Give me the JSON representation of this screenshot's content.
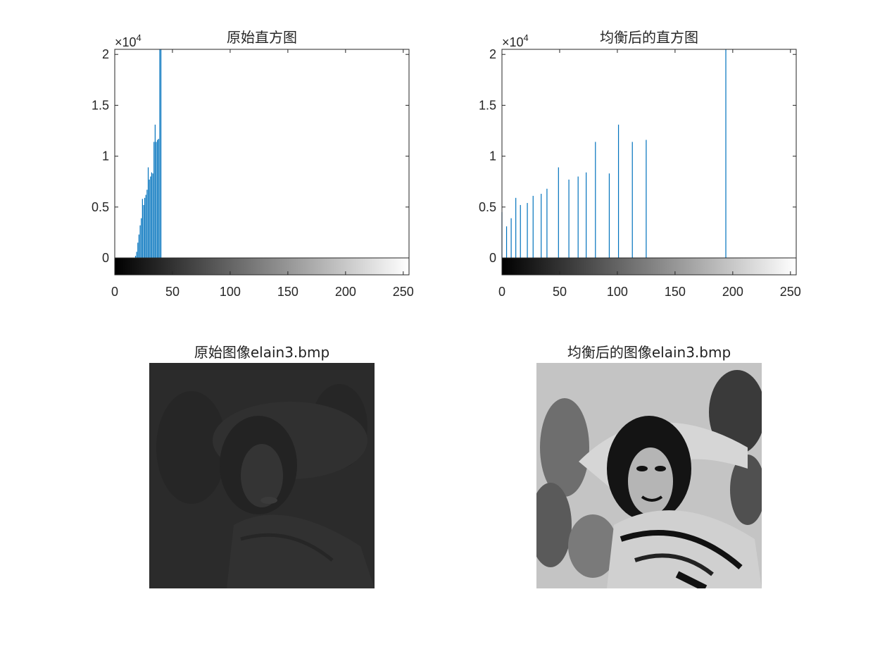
{
  "colors": {
    "bar": "#0072BD",
    "axis": "#262626",
    "background": "#ffffff",
    "original_image_tone": "#2b2b2b",
    "equalized_light": "#c4c4c4",
    "equalized_dark": "#111111"
  },
  "chart_data": [
    {
      "type": "bar",
      "title": "原始直方图",
      "exponent_label": "×10",
      "exponent_power": "4",
      "xlim": [
        0,
        255
      ],
      "ylim": [
        0,
        20500
      ],
      "xticks": [
        0,
        50,
        100,
        150,
        200,
        250
      ],
      "xtick_labels": [
        "0",
        "50",
        "100",
        "150",
        "200",
        "250"
      ],
      "yticks": [
        0,
        5000,
        10000,
        15000,
        20000
      ],
      "ytick_labels": [
        "0",
        "0.5",
        "1",
        "1.5",
        "2"
      ],
      "colorbar": "grayscale 0-255",
      "x": [
        18,
        19,
        20,
        21,
        22,
        23,
        24,
        25,
        26,
        27,
        28,
        29,
        30,
        31,
        32,
        33,
        34,
        35,
        36,
        37,
        38,
        39,
        40
      ],
      "values": [
        200,
        600,
        1500,
        2300,
        3200,
        3900,
        5800,
        5200,
        5900,
        6200,
        6700,
        8900,
        7700,
        8000,
        8400,
        8300,
        11400,
        13100,
        11400,
        11600,
        11700,
        20500,
        20500
      ]
    },
    {
      "type": "bar",
      "title": "均衡后的直方图",
      "exponent_label": "×10",
      "exponent_power": "4",
      "xlim": [
        0,
        255
      ],
      "ylim": [
        0,
        20500
      ],
      "xticks": [
        0,
        50,
        100,
        150,
        200,
        250
      ],
      "xtick_labels": [
        "0",
        "50",
        "100",
        "150",
        "200",
        "250"
      ],
      "yticks": [
        0,
        5000,
        10000,
        15000,
        20000
      ],
      "ytick_labels": [
        "0",
        "0.5",
        "1",
        "1.5",
        "2"
      ],
      "colorbar": "grayscale 0-255",
      "x": [
        0,
        4,
        8,
        12,
        16,
        22,
        27,
        34,
        39,
        49,
        58,
        66,
        73,
        81,
        93,
        101,
        113,
        125,
        194
      ],
      "values": [
        4500,
        3100,
        3900,
        5900,
        5200,
        5400,
        6100,
        6300,
        6800,
        8900,
        7700,
        8000,
        8400,
        11400,
        8300,
        13100,
        11400,
        11600,
        20500
      ]
    }
  ],
  "images": [
    {
      "title": "原始图像elain3.bmp"
    },
    {
      "title": "均衡后的图像elain3.bmp"
    }
  ]
}
